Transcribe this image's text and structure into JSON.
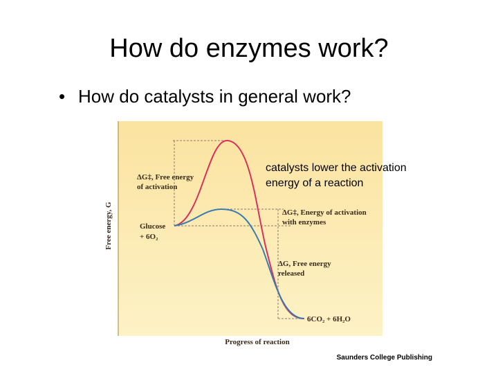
{
  "title": "How do enzymes work?",
  "bullets": [
    "How do catalysts in general work?"
  ],
  "note": [
    "catalysts lower the activation",
    "energy of a reaction"
  ],
  "figure": {
    "y_axis_label": "Free energy, G",
    "x_axis_label": "Progress of reaction",
    "uncatalyzed_label": [
      "ΔG‡, Free energy",
      "of activation"
    ],
    "catalyzed_label": [
      "ΔG‡, Energy of activation",
      "with enzymes"
    ],
    "reactants": [
      "Glucose",
      "+ 6O₂"
    ],
    "released_label": [
      "ΔG, Free energy",
      "released"
    ],
    "products": "6CO₂ + 6H₂O"
  },
  "credit": "Saunders College Publishing"
}
